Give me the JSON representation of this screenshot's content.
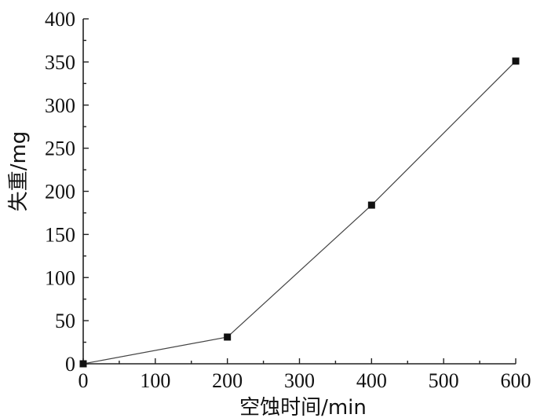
{
  "chart_data": {
    "type": "line",
    "xlabel": "空蚀时间/min",
    "ylabel": "失重/mg",
    "xlim": [
      0,
      600
    ],
    "ylim": [
      0,
      400
    ],
    "x_ticks": [
      "0",
      "100",
      "200",
      "300",
      "400",
      "500",
      "600"
    ],
    "y_ticks": [
      "0",
      "50",
      "100",
      "150",
      "200",
      "250",
      "300",
      "350",
      "400"
    ],
    "x_tick_values": [
      0,
      100,
      200,
      300,
      400,
      500,
      600
    ],
    "y_tick_values": [
      0,
      50,
      100,
      150,
      200,
      250,
      300,
      350,
      400
    ],
    "series": [
      {
        "x": [
          0,
          200,
          400,
          600
        ],
        "y": [
          0,
          31,
          184,
          351
        ],
        "marker": "square",
        "color": "#111111"
      }
    ],
    "grid": false,
    "legend": "none"
  }
}
